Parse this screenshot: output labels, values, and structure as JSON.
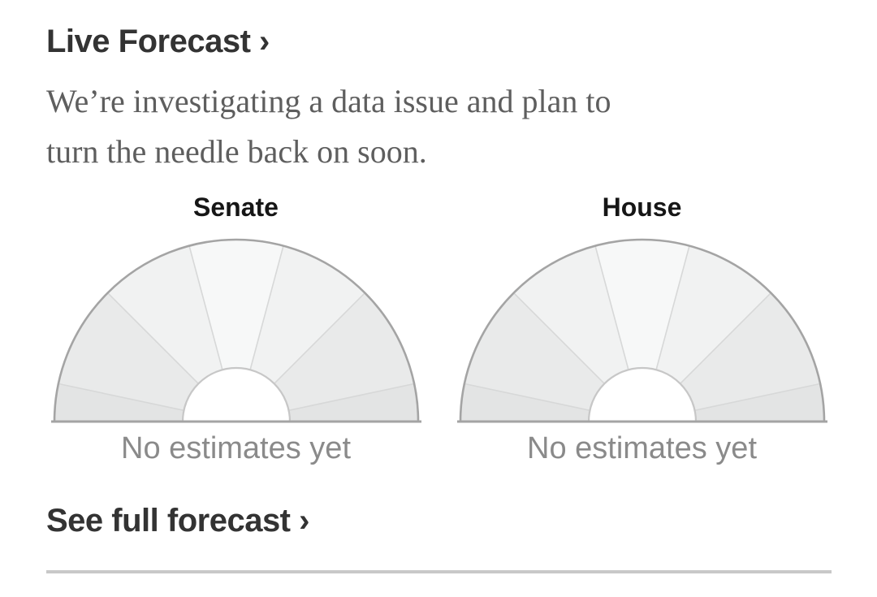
{
  "header": {
    "title_link": "Live Forecast ›",
    "message_lines": [
      "We’re investigating a data issue and plan to",
      "turn the needle back on soon."
    ]
  },
  "footer": {
    "link": "See full forecast ›"
  },
  "colors": {
    "background": "#ffffff",
    "heading_text": "#333333",
    "body_text": "#5e5e5e",
    "gauge_label_text": "#161616",
    "status_text": "#8a8a8a",
    "arc_stroke": "#a4a4a4",
    "baseline_stroke": "#a4a4a4",
    "hole_stroke": "#c7c7c7",
    "hole_fill": "#ffffff",
    "segment_divider_stroke": "#d7d8d8",
    "bottom_rule": "#c8c8c8"
  },
  "chart_data": [
    {
      "type": "gauge",
      "title": "Senate",
      "status_label": "No estimates yet",
      "value": null,
      "needle_visible": false,
      "arc_span_deg": 180,
      "segment_boundaries_deg": [
        0,
        12,
        45,
        75,
        105,
        135,
        168,
        180
      ],
      "segment_colors": [
        "#e3e4e4",
        "#e9eaea",
        "#f1f2f2",
        "#f7f8f8",
        "#f1f2f2",
        "#e9eaea",
        "#e3e4e4"
      ]
    },
    {
      "type": "gauge",
      "title": "House",
      "status_label": "No estimates yet",
      "value": null,
      "needle_visible": false,
      "arc_span_deg": 180,
      "segment_boundaries_deg": [
        0,
        12,
        45,
        75,
        105,
        135,
        168,
        180
      ],
      "segment_colors": [
        "#e3e4e4",
        "#e9eaea",
        "#f1f2f2",
        "#f7f8f8",
        "#f1f2f2",
        "#e9eaea",
        "#e3e4e4"
      ]
    }
  ]
}
